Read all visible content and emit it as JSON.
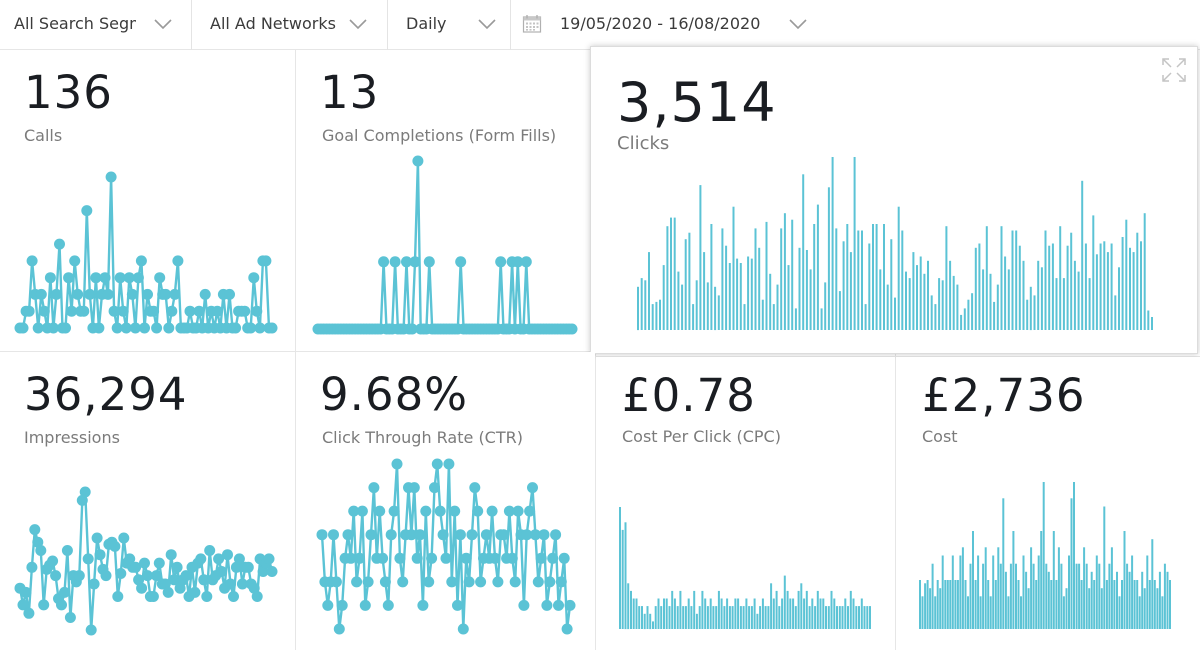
{
  "filters": {
    "segment": "All Search Segm",
    "network": "All Ad Networks",
    "period": "Daily",
    "date_range": "19/05/2020 - 16/08/2020"
  },
  "icons": {
    "calendar": "calendar-icon",
    "chevron": "chevron-down-icon",
    "expand": "expand-icon"
  },
  "colors": {
    "series": "#5bc3d5",
    "value": "#1a1d22",
    "label": "#7b7b7b"
  },
  "metrics": [
    {
      "id": "calls",
      "value": "136",
      "label": "Calls",
      "type": "line-dots",
      "values": [
        1,
        1,
        2,
        2,
        5,
        3,
        1,
        3,
        2,
        1,
        4,
        1,
        3,
        6,
        1,
        1,
        4,
        2,
        5,
        3,
        2,
        2,
        8,
        3,
        1,
        4,
        1,
        3,
        4,
        3,
        10,
        2,
        1,
        4,
        2,
        1,
        4,
        3,
        1,
        4,
        5,
        1,
        3,
        2,
        2,
        1,
        4,
        3,
        3,
        1,
        2,
        3,
        5,
        1,
        1,
        1,
        2,
        1,
        1,
        2,
        1,
        3,
        1,
        2,
        1,
        2,
        1,
        3,
        1,
        3,
        1,
        1,
        2,
        2,
        2,
        1,
        1,
        4,
        2,
        1,
        5,
        5,
        1,
        1
      ]
    },
    {
      "id": "goals",
      "value": "13",
      "label": "Goal Completions (Form Fills)",
      "type": "line-dots",
      "values": [
        0,
        0,
        0,
        0,
        0,
        0,
        0,
        0,
        0,
        0,
        0,
        0,
        0,
        0,
        0,
        0,
        0,
        0,
        0,
        0,
        0,
        0,
        0,
        2,
        0,
        0,
        0,
        2,
        0,
        0,
        0,
        2,
        0,
        0,
        2,
        5,
        0,
        0,
        0,
        2,
        0,
        0,
        0,
        0,
        0,
        0,
        0,
        0,
        0,
        0,
        2,
        0,
        0,
        0,
        0,
        0,
        0,
        0,
        0,
        0,
        0,
        0,
        0,
        0,
        2,
        0,
        0,
        0,
        2,
        0,
        2,
        0,
        0,
        2,
        0,
        0,
        0,
        0,
        0,
        0,
        0,
        0,
        0,
        0,
        0,
        0,
        0,
        0,
        0,
        0
      ]
    },
    {
      "id": "clicks",
      "value": "3,514",
      "label": "Clicks",
      "type": "bar",
      "values": [
        20,
        24,
        23,
        36,
        12,
        13,
        14,
        30,
        48,
        52,
        52,
        27,
        21,
        42,
        45,
        12,
        23,
        67,
        36,
        22,
        49,
        20,
        16,
        47,
        39,
        31,
        57,
        33,
        31,
        12,
        34,
        33,
        47,
        38,
        14,
        50,
        26,
        12,
        21,
        47,
        54,
        30,
        51,
        10,
        38,
        72,
        37,
        28,
        49,
        58,
        10,
        22,
        66,
        80,
        47,
        18,
        41,
        49,
        36,
        80,
        46,
        46,
        12,
        40,
        49,
        49,
        28,
        49,
        21,
        42,
        15,
        57,
        46,
        27,
        24,
        36,
        30,
        34,
        26,
        32,
        16,
        12,
        24,
        23,
        48,
        32,
        25,
        21,
        7,
        10,
        14,
        17,
        38,
        40,
        28,
        48,
        26,
        13,
        21,
        48,
        34,
        28,
        46,
        46,
        39,
        32,
        14,
        20,
        16,
        32,
        29,
        46,
        39,
        40,
        24,
        48,
        24,
        39,
        45,
        32,
        27,
        69,
        40,
        24,
        53,
        35,
        40,
        41,
        36,
        40,
        16,
        29,
        43,
        51,
        38,
        36,
        45,
        41,
        54,
        9,
        6
      ]
    },
    {
      "id": "impressions",
      "value": "36,294",
      "label": "Impressions",
      "type": "line-dots",
      "values": [
        370,
        330,
        360,
        310,
        420,
        510,
        480,
        460,
        330,
        415,
        425,
        435,
        400,
        345,
        330,
        360,
        460,
        300,
        400,
        385,
        400,
        580,
        600,
        440,
        270,
        380,
        490,
        450,
        415,
        400,
        475,
        480,
        470,
        350,
        405,
        490,
        430,
        440,
        420,
        420,
        390,
        370,
        430,
        400,
        350,
        350,
        400,
        430,
        380,
        380,
        360,
        450,
        390,
        420,
        370,
        390,
        400,
        350,
        420,
        360,
        430,
        440,
        390,
        350,
        460,
        390,
        400,
        440,
        410,
        370,
        450,
        380,
        350,
        420,
        440,
        380,
        420,
        420,
        380,
        370,
        350,
        440,
        410,
        430,
        440,
        410
      ]
    },
    {
      "id": "ctr",
      "value": "9.68%",
      "label": "Click Through Rate (CTR)",
      "type": "line-dots",
      "values": [
        13,
        11,
        10,
        11,
        13,
        11,
        9,
        10,
        12,
        13,
        12,
        14,
        11,
        12,
        14,
        10,
        11,
        13,
        15,
        12,
        14,
        12,
        11,
        10,
        13,
        14,
        16,
        12,
        11,
        13,
        15,
        13,
        15,
        12,
        13,
        10,
        14,
        11,
        12,
        15,
        16,
        14,
        13,
        12,
        16,
        11,
        14,
        10,
        13,
        9,
        12,
        11,
        13,
        15,
        14,
        11,
        12,
        13,
        12,
        14,
        12,
        11,
        13,
        13,
        12,
        14,
        12,
        11,
        14,
        13,
        10,
        13,
        14,
        15,
        13,
        11,
        12,
        13,
        10,
        11,
        12,
        13,
        10,
        11,
        12,
        9,
        10
      ]
    },
    {
      "id": "cpc",
      "value": "£0.78",
      "label": "Cost Per Click (CPC)",
      "type": "bar",
      "values": [
        1.6,
        1.3,
        1.4,
        0.6,
        0.5,
        0.4,
        0.4,
        0.3,
        0.3,
        0.2,
        0.3,
        0.2,
        0.1,
        0.3,
        0.4,
        0.3,
        0.4,
        0.4,
        0.3,
        0.5,
        0.4,
        0.3,
        0.5,
        0.3,
        0.3,
        0.4,
        0.3,
        0.5,
        0.2,
        0.3,
        0.5,
        0.4,
        0.3,
        0.4,
        0.3,
        0.3,
        0.5,
        0.4,
        0.3,
        0.4,
        0.3,
        0.3,
        0.4,
        0.4,
        0.3,
        0.3,
        0.4,
        0.3,
        0.3,
        0.4,
        0.2,
        0.3,
        0.4,
        0.3,
        0.3,
        0.6,
        0.4,
        0.5,
        0.3,
        0.4,
        0.7,
        0.5,
        0.4,
        0.4,
        0.3,
        0.5,
        0.6,
        0.4,
        0.5,
        0.3,
        0.4,
        0.3,
        0.5,
        0.4,
        0.4,
        0.3,
        0.3,
        0.5,
        0.4,
        0.3,
        0.3,
        0.3,
        0.4,
        0.3,
        0.5,
        0.4,
        0.3,
        0.3,
        0.4,
        0.3,
        0.3,
        0.3
      ]
    },
    {
      "id": "cost",
      "value": "£2,736",
      "label": "Cost",
      "type": "bar",
      "values": [
        30,
        20,
        28,
        30,
        25,
        40,
        20,
        30,
        25,
        45,
        30,
        30,
        30,
        45,
        30,
        30,
        45,
        50,
        30,
        20,
        40,
        60,
        30,
        45,
        20,
        40,
        50,
        30,
        20,
        45,
        30,
        50,
        40,
        80,
        35,
        20,
        40,
        60,
        40,
        30,
        20,
        45,
        35,
        25,
        50,
        40,
        30,
        45,
        60,
        90,
        40,
        35,
        30,
        60,
        30,
        50,
        40,
        20,
        25,
        45,
        80,
        90,
        40,
        40,
        30,
        50,
        40,
        25,
        35,
        30,
        45,
        40,
        25,
        75,
        30,
        40,
        50,
        30,
        35,
        20,
        30,
        60,
        40,
        35,
        45,
        30,
        30,
        20,
        35,
        25,
        45,
        30,
        55,
        30,
        25,
        35,
        20,
        40,
        35,
        30
      ]
    }
  ]
}
